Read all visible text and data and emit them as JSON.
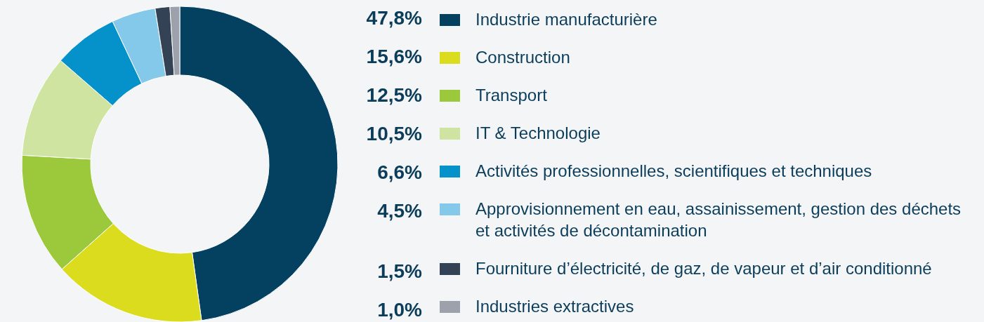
{
  "chart_data": {
    "type": "donut",
    "categories": [
      "Industrie manufacturière",
      "Construction",
      "Transport",
      "IT & Technologie",
      "Activités professionnelles, scientifiques et techniques",
      "Approvisionnement en eau, assainissement, gestion des déchets et activités de décontamination",
      "Fourniture d’électricité, de gaz, de vapeur et d’air conditionné",
      "Industries extractives"
    ],
    "values": [
      47.8,
      15.6,
      12.5,
      10.5,
      6.6,
      4.5,
      1.5,
      1.0
    ],
    "value_labels": [
      "47,8%",
      "15,6%",
      "12,5%",
      "10,5%",
      "6,6%",
      "4,5%",
      "1,5%",
      "1,0%"
    ],
    "colors": [
      "#044060",
      "#dbdc1d",
      "#9bc93b",
      "#cfe4a0",
      "#0592cb",
      "#84c9e9",
      "#344256",
      "#9da1ac"
    ],
    "legend": "right"
  }
}
